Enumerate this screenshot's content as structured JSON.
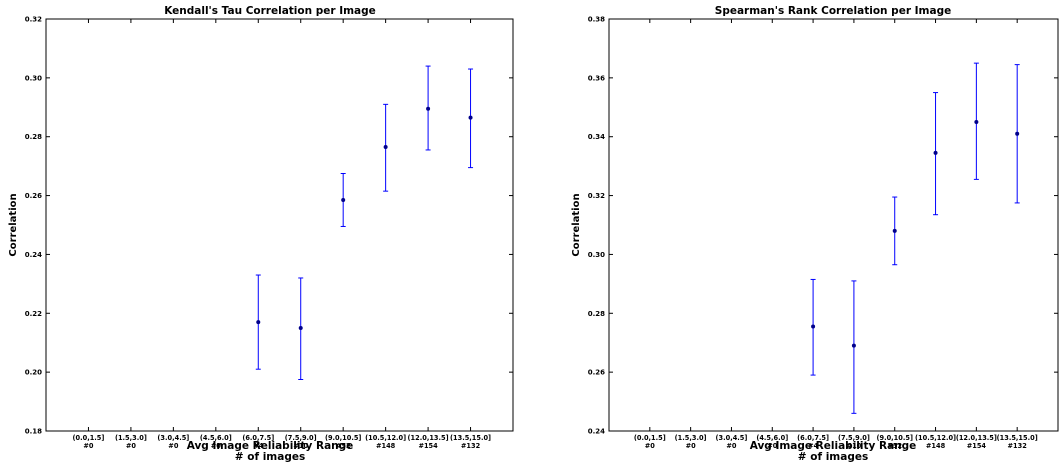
{
  "chart_data": [
    {
      "type": "scatter",
      "title": "Kendall's Tau Correlation per Image",
      "xlabel": "Avg Image Reliability Range",
      "xlabel2": "# of images",
      "ylabel": "Correlation",
      "ylim": [
        0.18,
        0.32
      ],
      "yticks": [
        "0.18",
        "0.20",
        "0.22",
        "0.24",
        "0.26",
        "0.28",
        "0.30",
        "0.32"
      ],
      "categories": [
        "(0.0,1.5]",
        "(1.5,3.0]",
        "(3.0,4.5]",
        "(4.5,6.0]",
        "(6.0,7.5]",
        "(7.5,9.0]",
        "(9.0,10.5]",
        "(10.5,12.0]",
        "(12.0,13.5]",
        "(13.5,15.0]"
      ],
      "counts": [
        "#0",
        "#0",
        "#0",
        "#0",
        "#4",
        "#10",
        "#52",
        "#148",
        "#154",
        "#132"
      ],
      "values": [
        null,
        null,
        null,
        null,
        0.217,
        0.215,
        0.2585,
        0.2765,
        0.2895,
        0.2865
      ],
      "err_low": [
        null,
        null,
        null,
        null,
        0.201,
        0.1975,
        0.2495,
        0.2615,
        0.2755,
        0.2695
      ],
      "err_high": [
        null,
        null,
        null,
        null,
        0.233,
        0.232,
        0.2675,
        0.291,
        0.304,
        0.303
      ],
      "grid": false,
      "marker_color": "#00008b",
      "errorbar_color": "#0000ff"
    },
    {
      "type": "scatter",
      "title": "Spearman's Rank Correlation per Image",
      "xlabel": "Avg Image Reliability Range",
      "xlabel2": "# of images",
      "ylabel": "Correlation",
      "ylim": [
        0.24,
        0.38
      ],
      "yticks": [
        "0.24",
        "0.26",
        "0.28",
        "0.30",
        "0.32",
        "0.34",
        "0.36",
        "0.38"
      ],
      "categories": [
        "(0.0,1.5]",
        "(1.5,3.0]",
        "(3.0,4.5]",
        "(4.5,6.0]",
        "(6.0,7.5]",
        "(7.5,9.0]",
        "(9.0,10.5]",
        "(10.5,12.0]",
        "(12.0,13.5]",
        "(13.5,15.0]"
      ],
      "counts": [
        "#0",
        "#0",
        "#0",
        "#0",
        "#4",
        "#10",
        "#52",
        "#148",
        "#154",
        "#132"
      ],
      "values": [
        null,
        null,
        null,
        null,
        0.2755,
        0.269,
        0.308,
        0.3345,
        0.345,
        0.341
      ],
      "err_low": [
        null,
        null,
        null,
        null,
        0.259,
        0.246,
        0.2965,
        0.3135,
        0.3255,
        0.3175
      ],
      "err_high": [
        null,
        null,
        null,
        null,
        0.2915,
        0.291,
        0.3195,
        0.355,
        0.365,
        0.3645
      ],
      "grid": false,
      "marker_color": "#00008b",
      "errorbar_color": "#0000ff"
    }
  ]
}
